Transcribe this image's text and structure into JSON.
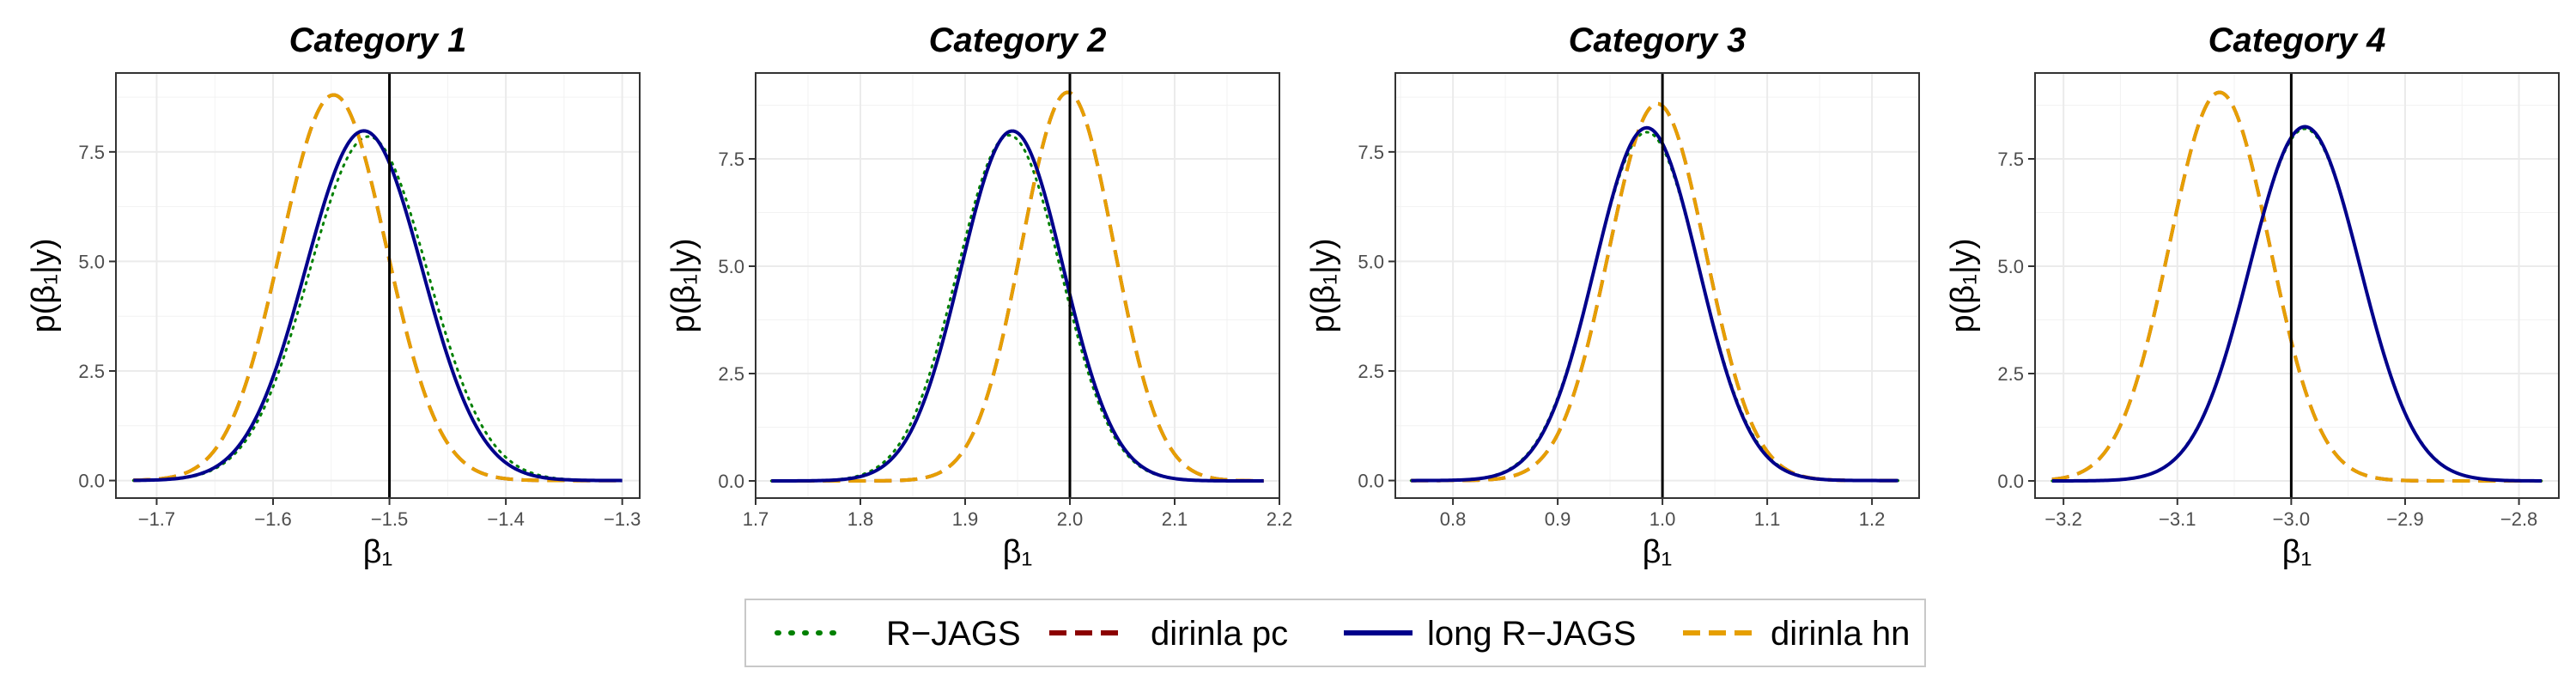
{
  "chart_data": [
    {
      "type": "line",
      "title": "Category 1",
      "xlabel": "β₁",
      "ylabel": "p(β₁|y)",
      "xlim": [
        -1.735,
        -1.285
      ],
      "ylim": [
        -0.4,
        9.3
      ],
      "xticks": [
        -1.7,
        -1.6,
        -1.5,
        -1.4,
        -1.3
      ],
      "xtick_labels": [
        "−1.7",
        "−1.6",
        "−1.5",
        "−1.4",
        "−1.3"
      ],
      "yticks": [
        0,
        2.5,
        5,
        7.5
      ],
      "ytick_labels": [
        "0.0",
        "2.5",
        "5.0",
        "7.5"
      ],
      "x_range": [
        -1.72,
        -1.3
      ],
      "vline": -1.5,
      "series": [
        {
          "name": "R−JAGS",
          "mean": -1.518,
          "peak": 7.85
        },
        {
          "name": "dirinla pc",
          "mean": -1.548,
          "peak": 8.8
        },
        {
          "name": "long R−JAGS",
          "mean": -1.522,
          "peak": 7.98
        },
        {
          "name": "dirinla hn",
          "mean": -1.548,
          "peak": 8.8
        }
      ]
    },
    {
      "type": "line",
      "title": "Category 2",
      "xlabel": "β₁",
      "ylabel": "p(β₁|y)",
      "xlim": [
        1.7,
        2.2
      ],
      "ylim": [
        -0.4,
        9.5
      ],
      "xticks": [
        1.7,
        1.8,
        1.9,
        2.0,
        2.1,
        2.2
      ],
      "xtick_labels": [
        "1.7",
        "1.8",
        "1.9",
        "2.0",
        "2.1",
        "2.2"
      ],
      "yticks": [
        0,
        2.5,
        5,
        7.5
      ],
      "ytick_labels": [
        "0.0",
        "2.5",
        "5.0",
        "7.5"
      ],
      "x_range": [
        1.715,
        2.185
      ],
      "vline": 2.0,
      "series": [
        {
          "name": "R−JAGS",
          "mean": 1.942,
          "peak": 8.05
        },
        {
          "name": "dirinla pc",
          "mean": 1.998,
          "peak": 9.05
        },
        {
          "name": "long R−JAGS",
          "mean": 1.945,
          "peak": 8.15
        },
        {
          "name": "dirinla hn",
          "mean": 1.998,
          "peak": 9.05
        }
      ]
    },
    {
      "type": "line",
      "title": "Category 3",
      "xlabel": "β₁",
      "ylabel": "p(β₁|y)",
      "xlim": [
        0.745,
        1.245
      ],
      "ylim": [
        -0.4,
        9.3
      ],
      "xticks": [
        0.8,
        0.9,
        1.0,
        1.1,
        1.2
      ],
      "xtick_labels": [
        "0.8",
        "0.9",
        "1.0",
        "1.1",
        "1.2"
      ],
      "yticks": [
        0,
        2.5,
        5,
        7.5
      ],
      "ytick_labels": [
        "0.0",
        "2.5",
        "5.0",
        "7.5"
      ],
      "x_range": [
        0.76,
        1.225
      ],
      "vline": 1.0,
      "series": [
        {
          "name": "R−JAGS",
          "mean": 0.985,
          "peak": 7.95
        },
        {
          "name": "dirinla pc",
          "mean": 0.995,
          "peak": 8.6
        },
        {
          "name": "long R−JAGS",
          "mean": 0.985,
          "peak": 8.05
        },
        {
          "name": "dirinla hn",
          "mean": 0.995,
          "peak": 8.6
        }
      ]
    },
    {
      "type": "line",
      "title": "Category 4",
      "xlabel": "β₁",
      "ylabel": "p(β₁|y)",
      "xlim": [
        -3.225,
        -2.765
      ],
      "ylim": [
        -0.4,
        9.5
      ],
      "xticks": [
        -3.2,
        -3.1,
        -3.0,
        -2.9,
        -2.8
      ],
      "xtick_labels": [
        "−3.2",
        "−3.1",
        "−3.0",
        "−2.9",
        "−2.8"
      ],
      "yticks": [
        0,
        2.5,
        5,
        7.5
      ],
      "ytick_labels": [
        "0.0",
        "2.5",
        "5.0",
        "7.5"
      ],
      "x_range": [
        -3.21,
        -2.78
      ],
      "vline": -3.0,
      "series": [
        {
          "name": "R−JAGS",
          "mean": -2.988,
          "peak": 8.2
        },
        {
          "name": "dirinla pc",
          "mean": -3.063,
          "peak": 9.05
        },
        {
          "name": "long R−JAGS",
          "mean": -2.988,
          "peak": 8.25
        },
        {
          "name": "dirinla hn",
          "mean": -3.063,
          "peak": 9.05
        }
      ]
    }
  ],
  "legend": {
    "position": "bottom",
    "items": [
      {
        "label": "R−JAGS",
        "color": "#008000",
        "dash": "dotted"
      },
      {
        "label": "dirinla pc",
        "color": "#8b0000",
        "dash": "dashed"
      },
      {
        "label": "long R−JAGS",
        "color": "#00008b",
        "dash": "solid"
      },
      {
        "label": "dirinla hn",
        "color": "#e69f00",
        "dash": "dashed"
      }
    ]
  },
  "style": {
    "grid": true,
    "vline_color": "#000000",
    "series_colors": [
      "#008000",
      "#8b0000",
      "#00008b",
      "#e69f00"
    ]
  }
}
